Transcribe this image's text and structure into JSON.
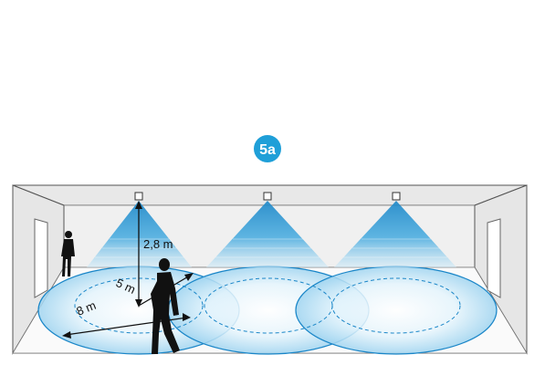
{
  "figure": {
    "badge": "5a",
    "labels": {
      "height": "2,8 m",
      "inner_radius": "5 m",
      "outer_radius": "8 m"
    },
    "sensor_count": 3,
    "colors": {
      "badge": "#1f9fd8",
      "beam": "#2a8fcf",
      "zone_fill": "#bfe3f6",
      "zone_stroke": "#1a86c8",
      "wall": "#eeeeee",
      "outline": "#555555",
      "figure": "#111111"
    }
  }
}
